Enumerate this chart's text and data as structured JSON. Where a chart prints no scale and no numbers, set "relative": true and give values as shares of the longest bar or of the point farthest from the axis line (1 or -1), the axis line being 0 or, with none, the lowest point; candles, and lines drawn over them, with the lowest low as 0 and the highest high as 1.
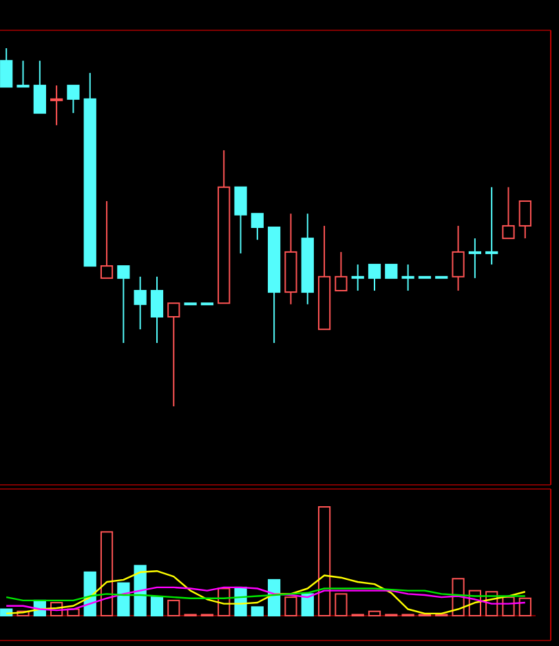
{
  "chart_data": [
    {
      "type": "candlestick",
      "relative": true,
      "categories": [
        null,
        null,
        null,
        null,
        null,
        null,
        null,
        null,
        null,
        null,
        null,
        null,
        null,
        null,
        null,
        null,
        null,
        null,
        null,
        null,
        null,
        null,
        null,
        null,
        null,
        null,
        null,
        null,
        null,
        null,
        null,
        null
      ],
      "ohlc": [
        [
          0.965,
          1.0,
          0.892,
          0.892
        ],
        [
          0.896,
          0.965,
          0.896,
          0.896
        ],
        [
          0.896,
          0.965,
          0.819,
          0.819
        ],
        [
          0.858,
          0.896,
          0.785,
          0.858
        ],
        [
          0.896,
          0.896,
          0.819,
          0.858
        ],
        [
          0.858,
          0.931,
          0.392,
          0.392
        ],
        [
          0.358,
          0.573,
          0.358,
          0.392
        ],
        [
          0.392,
          0.392,
          0.177,
          0.358
        ],
        [
          0.323,
          0.362,
          0.215,
          0.285
        ],
        [
          0.323,
          0.362,
          0.177,
          0.25
        ],
        [
          0.25,
          0.288,
          0,
          0.288
        ],
        [
          0.288,
          0.288,
          0.288,
          0.288
        ],
        [
          0.288,
          0.288,
          0.288,
          0.288
        ],
        [
          0.288,
          0.715,
          0.288,
          0.612
        ],
        [
          0.612,
          0.612,
          0.427,
          0.535
        ],
        [
          0.538,
          0.538,
          0.465,
          0.5
        ],
        [
          0.5,
          0.5,
          0.177,
          0.319
        ],
        [
          0.319,
          0.538,
          0.285,
          0.431
        ],
        [
          0.469,
          0.538,
          0.285,
          0.319
        ],
        [
          0.215,
          0.504,
          0.215,
          0.362
        ],
        [
          0.323,
          0.431,
          0.323,
          0.362
        ],
        [
          0.362,
          0.396,
          0.323,
          0.362
        ],
        [
          0.396,
          0.396,
          0.323,
          0.358
        ],
        [
          0.396,
          0.396,
          0.358,
          0.358
        ],
        [
          0.362,
          0.396,
          0.323,
          0.362
        ],
        [
          0.362,
          0.362,
          0.362,
          0.362
        ],
        [
          0.362,
          0.362,
          0.362,
          0.362
        ],
        [
          0.362,
          0.504,
          0.323,
          0.431
        ],
        [
          0.431,
          0.469,
          0.358,
          0.431
        ],
        [
          0.431,
          0.612,
          0.396,
          0.431
        ],
        [
          0.469,
          0.612,
          0.469,
          0.504
        ],
        [
          0.504,
          0.573,
          0.469,
          0.573
        ]
      ],
      "colors": [
        "#54fcfc",
        "#54fcfc",
        "#54fcfc",
        "#ff5454",
        "#54fcfc",
        "#54fcfc",
        "#ff5454",
        "#54fcfc",
        "#54fcfc",
        "#54fcfc",
        "#ff5454",
        "#54fcfc",
        "#54fcfc",
        "#ff5454",
        "#54fcfc",
        "#54fcfc",
        "#54fcfc",
        "#ff5454",
        "#54fcfc",
        "#ff5454",
        "#ff5454",
        "#54fcfc",
        "#54fcfc",
        "#54fcfc",
        "#54fcfc",
        "#54fcfc",
        "#54fcfc",
        "#ff5454",
        "#54fcfc",
        "#54fcfc",
        "#ff5454",
        "#ff5454"
      ]
    },
    {
      "type": "bar",
      "relative": true,
      "categories": [
        null,
        null,
        null,
        null,
        null,
        null,
        null,
        null,
        null,
        null,
        null,
        null,
        null,
        null,
        null,
        null,
        null,
        null,
        null,
        null,
        null,
        null,
        null,
        null,
        null,
        null,
        null,
        null,
        null,
        null,
        null,
        null
      ],
      "series": [
        {
          "type": "bar",
          "values": [
            0.06,
            0.04,
            0.14,
            0.12,
            0.06,
            0.4,
            0.77,
            0.3,
            0.46,
            0.17,
            0.14,
            0.01,
            0.01,
            0.25,
            0.26,
            0.08,
            0.33,
            0.17,
            0.2,
            1,
            0.2,
            0.01,
            0.04,
            0.01,
            0.01,
            0.01,
            0.01,
            0.34,
            0.23,
            0.22,
            0.17,
            0.16
          ],
          "colors": [
            "#54fcfc",
            "#ff5454",
            "#54fcfc",
            "#ff5454",
            "#ff5454",
            "#54fcfc",
            "#ff5454",
            "#54fcfc",
            "#54fcfc",
            "#54fcfc",
            "#ff5454",
            "#ff5454",
            "#ff5454",
            "#ff5454",
            "#54fcfc",
            "#54fcfc",
            "#54fcfc",
            "#ff5454",
            "#54fcfc",
            "#ff5454",
            "#ff5454",
            "#ff5454",
            "#ff5454",
            "#ff5454",
            "#ff5454",
            "#ff5454",
            "#ff5454",
            "#ff5454",
            "#ff5454",
            "#ff5454",
            "#ff5454",
            "#ff5454"
          ]
        },
        {
          "type": "line",
          "color": "#ffff00",
          "values": [
            0.02,
            0.03,
            0.06,
            0.07,
            0.09,
            0.17,
            0.31,
            0.33,
            0.4,
            0.41,
            0.36,
            0.23,
            0.15,
            0.11,
            0.11,
            0.12,
            0.2,
            0.2,
            0.25,
            0.37,
            0.35,
            0.31,
            0.29,
            0.21,
            0.06,
            0.02,
            0.02,
            0.06,
            0.12,
            0.15,
            0.18,
            0.22
          ]
        },
        {
          "type": "line",
          "color": "#ff00ff",
          "values": [
            0.09,
            0.09,
            0.06,
            0.05,
            0.06,
            0.11,
            0.16,
            0.2,
            0.23,
            0.26,
            0.26,
            0.25,
            0.23,
            0.26,
            0.26,
            0.25,
            0.2,
            0.19,
            0.17,
            0.23,
            0.23,
            0.23,
            0.23,
            0.23,
            0.2,
            0.19,
            0.17,
            0.18,
            0.15,
            0.11,
            0.11,
            0.12
          ]
        },
        {
          "type": "line",
          "color": "#00e600",
          "values": [
            0.17,
            0.14,
            0.14,
            0.14,
            0.14,
            0.18,
            0.2,
            0.19,
            0.19,
            0.18,
            0.17,
            0.16,
            0.16,
            0.16,
            0.17,
            0.18,
            0.19,
            0.2,
            0.21,
            0.25,
            0.25,
            0.25,
            0.25,
            0.24,
            0.23,
            0.23,
            0.2,
            0.19,
            0.18,
            0.18,
            0.18,
            0.18
          ]
        }
      ]
    }
  ]
}
